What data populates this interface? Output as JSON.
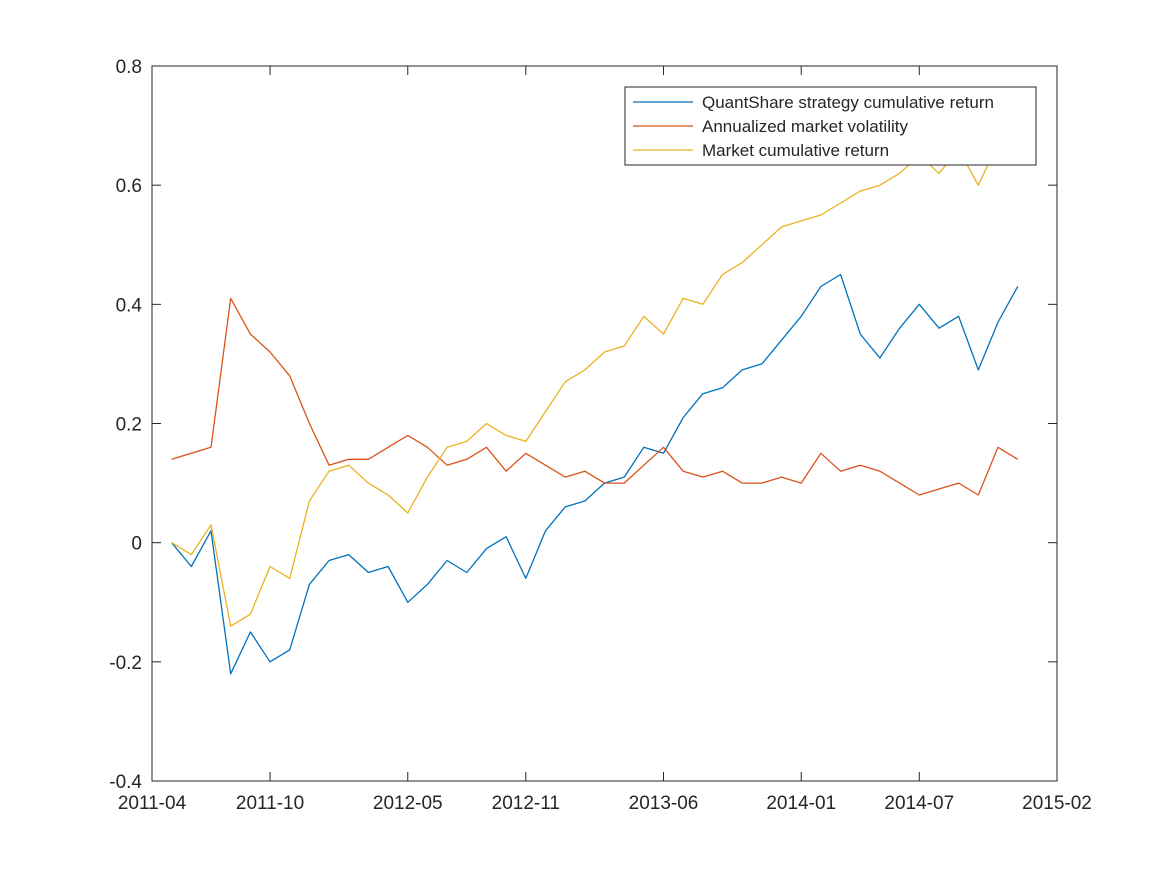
{
  "chart_data": {
    "type": "line",
    "title": "",
    "xlabel": "",
    "ylabel": "",
    "x_ticks": [
      "2011-04",
      "2011-10",
      "2012-05",
      "2012-11",
      "2013-06",
      "2014-01",
      "2014-07",
      "2015-02"
    ],
    "y_ticks": [
      -0.4,
      -0.2,
      0,
      0.2,
      0.4,
      0.6,
      0.8
    ],
    "y_tick_labels": [
      "-0.4",
      "-0.2",
      "0",
      "0.2",
      "0.4",
      "0.6",
      "0.8"
    ],
    "xlim": [
      "2011-04",
      "2015-02"
    ],
    "ylim": [
      -0.4,
      0.8
    ],
    "grid": false,
    "box": true,
    "legend_position": "top-right",
    "series": [
      {
        "name": "QuantShare strategy cumulative return",
        "color": "#0072BD",
        "x": [
          "2011-05",
          "2011-06",
          "2011-07",
          "2011-08",
          "2011-09",
          "2011-10",
          "2011-11",
          "2011-12",
          "2012-01",
          "2012-02",
          "2012-03",
          "2012-04",
          "2012-05",
          "2012-06",
          "2012-07",
          "2012-08",
          "2012-09",
          "2012-10",
          "2012-11",
          "2012-12",
          "2013-01",
          "2013-02",
          "2013-03",
          "2013-04",
          "2013-05",
          "2013-06",
          "2013-07",
          "2013-08",
          "2013-09",
          "2013-10",
          "2013-11",
          "2013-12",
          "2014-01",
          "2014-02",
          "2014-03",
          "2014-04",
          "2014-05",
          "2014-06",
          "2014-07",
          "2014-08",
          "2014-09",
          "2014-10",
          "2014-11",
          "2014-12"
        ],
        "values": [
          0.0,
          -0.04,
          0.02,
          -0.22,
          -0.15,
          -0.2,
          -0.18,
          -0.07,
          -0.03,
          -0.02,
          -0.05,
          -0.04,
          -0.1,
          -0.07,
          -0.03,
          -0.05,
          -0.01,
          0.01,
          -0.06,
          0.02,
          0.06,
          0.07,
          0.1,
          0.11,
          0.16,
          0.15,
          0.21,
          0.25,
          0.26,
          0.29,
          0.3,
          0.34,
          0.38,
          0.43,
          0.45,
          0.35,
          0.31,
          0.36,
          0.4,
          0.36,
          0.38,
          0.29,
          0.37,
          0.43
        ]
      },
      {
        "name": "Annualized market volatility",
        "color": "#D95319",
        "x": [
          "2011-05",
          "2011-06",
          "2011-07",
          "2011-08",
          "2011-09",
          "2011-10",
          "2011-11",
          "2011-12",
          "2012-01",
          "2012-02",
          "2012-03",
          "2012-04",
          "2012-05",
          "2012-06",
          "2012-07",
          "2012-08",
          "2012-09",
          "2012-10",
          "2012-11",
          "2012-12",
          "2013-01",
          "2013-02",
          "2013-03",
          "2013-04",
          "2013-05",
          "2013-06",
          "2013-07",
          "2013-08",
          "2013-09",
          "2013-10",
          "2013-11",
          "2013-12",
          "2014-01",
          "2014-02",
          "2014-03",
          "2014-04",
          "2014-05",
          "2014-06",
          "2014-07",
          "2014-08",
          "2014-09",
          "2014-10",
          "2014-11",
          "2014-12"
        ],
        "values": [
          0.14,
          0.15,
          0.16,
          0.41,
          0.35,
          0.32,
          0.28,
          0.2,
          0.13,
          0.14,
          0.14,
          0.16,
          0.18,
          0.16,
          0.13,
          0.14,
          0.16,
          0.12,
          0.15,
          0.13,
          0.11,
          0.12,
          0.1,
          0.1,
          0.13,
          0.16,
          0.12,
          0.11,
          0.12,
          0.1,
          0.1,
          0.11,
          0.1,
          0.15,
          0.12,
          0.13,
          0.12,
          0.1,
          0.08,
          0.09,
          0.1,
          0.08,
          0.16,
          0.14
        ]
      },
      {
        "name": "Market cumulative return",
        "color": "#EDB120",
        "x": [
          "2011-05",
          "2011-06",
          "2011-07",
          "2011-08",
          "2011-09",
          "2011-10",
          "2011-11",
          "2011-12",
          "2012-01",
          "2012-02",
          "2012-03",
          "2012-04",
          "2012-05",
          "2012-06",
          "2012-07",
          "2012-08",
          "2012-09",
          "2012-10",
          "2012-11",
          "2012-12",
          "2013-01",
          "2013-02",
          "2013-03",
          "2013-04",
          "2013-05",
          "2013-06",
          "2013-07",
          "2013-08",
          "2013-09",
          "2013-10",
          "2013-11",
          "2013-12",
          "2014-01",
          "2014-02",
          "2014-03",
          "2014-04",
          "2014-05",
          "2014-06",
          "2014-07",
          "2014-08",
          "2014-09",
          "2014-10",
          "2014-11",
          "2014-12"
        ],
        "values": [
          0.0,
          -0.02,
          0.03,
          -0.14,
          -0.12,
          -0.04,
          -0.06,
          0.07,
          0.12,
          0.13,
          0.1,
          0.08,
          0.05,
          0.11,
          0.16,
          0.17,
          0.2,
          0.18,
          0.17,
          0.22,
          0.27,
          0.29,
          0.32,
          0.33,
          0.38,
          0.35,
          0.41,
          0.4,
          0.45,
          0.47,
          0.5,
          0.53,
          0.54,
          0.55,
          0.57,
          0.59,
          0.6,
          0.62,
          0.65,
          0.62,
          0.66,
          0.6,
          0.67,
          0.68
        ]
      }
    ]
  }
}
